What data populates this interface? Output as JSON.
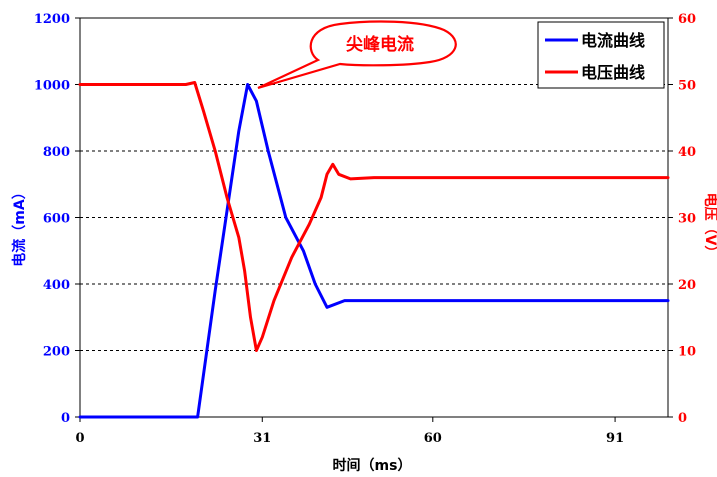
{
  "chart_data": {
    "type": "line",
    "xlabel": "时间（ms）",
    "ylabel_left": "电流（mA）",
    "ylabel_right": "电压（V）",
    "xlim": [
      0,
      100
    ],
    "x_ticks": [
      0,
      31,
      60,
      91
    ],
    "ylim_left": [
      0,
      1200
    ],
    "y_ticks_left": [
      0,
      200,
      400,
      600,
      800,
      1000,
      1200
    ],
    "ylim_right": [
      0,
      60
    ],
    "y_ticks_right": [
      0,
      10,
      20,
      30,
      40,
      50,
      60
    ],
    "grid": "horizontal dashed",
    "legend_position": "top-right",
    "annotation": "尖峰电流",
    "colors": {
      "current": "#0000ff",
      "voltage": "#ff0000",
      "tick_left": "#0000ff",
      "tick_right": "#ff0000"
    },
    "series": [
      {
        "name": "电流曲线",
        "axis": "left",
        "color": "#0000ff",
        "x": [
          0,
          20,
          23,
          27,
          28.5,
          30,
          32,
          35,
          38,
          40,
          42,
          45,
          100
        ],
        "values": [
          0,
          0,
          380,
          860,
          1000,
          950,
          800,
          600,
          500,
          400,
          330,
          350,
          350
        ]
      },
      {
        "name": "电压曲线",
        "axis": "right",
        "color": "#ff0000",
        "x": [
          0,
          18,
          19.5,
          21,
          23,
          25,
          27,
          28,
          29,
          30,
          31,
          33,
          36,
          39,
          40,
          41,
          42,
          43,
          44,
          46,
          48,
          50,
          100
        ],
        "values": [
          50,
          50,
          50.3,
          46,
          40,
          33,
          27,
          22,
          15,
          10,
          12,
          17.5,
          24,
          29,
          31,
          33,
          36.5,
          38,
          36.5,
          35.8,
          35.9,
          36,
          36
        ]
      }
    ]
  }
}
